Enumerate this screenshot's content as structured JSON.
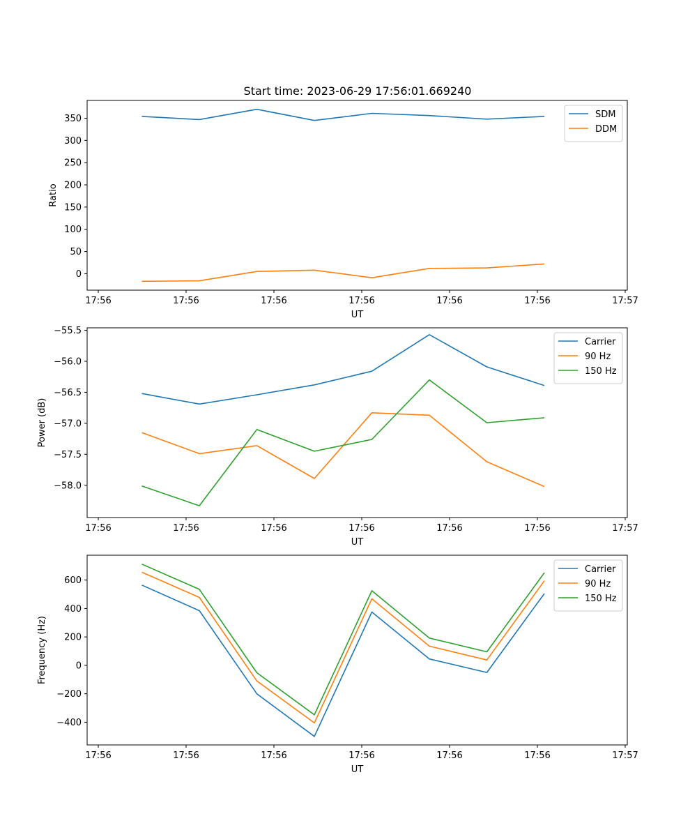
{
  "figure": {
    "title": "Start time: 2023-06-29 17:56:01.669240"
  },
  "chart_data": [
    {
      "type": "line",
      "title": "Start time: 2023-06-29 17:56:01.669240",
      "xlabel": "UT",
      "ylabel": "Ratio",
      "x_tick_labels": [
        "17:56",
        "17:56",
        "17:56",
        "17:56",
        "17:56",
        "17:56",
        "17:57"
      ],
      "y_ticks": [
        0,
        50,
        100,
        150,
        200,
        250,
        300,
        350
      ],
      "ylim": [
        -37,
        390
      ],
      "legend_position": "top-right",
      "grid": false,
      "series": [
        {
          "name": "SDM",
          "color": "#1f77b4",
          "values": [
            354,
            347,
            370,
            345,
            361,
            356,
            348,
            354
          ]
        },
        {
          "name": "DDM",
          "color": "#ff7f0e",
          "values": [
            -17,
            -16,
            5,
            8,
            -9,
            12,
            13,
            22
          ]
        }
      ]
    },
    {
      "type": "line",
      "title": "",
      "xlabel": "UT",
      "ylabel": "Power (dB)",
      "x_tick_labels": [
        "17:56",
        "17:56",
        "17:56",
        "17:56",
        "17:56",
        "17:56",
        "17:57"
      ],
      "y_ticks": [
        -58.0,
        -57.5,
        -57.0,
        -56.5,
        -56.0,
        -55.5
      ],
      "y_tick_labels": [
        "−58.0",
        "−57.5",
        "−57.0",
        "−56.5",
        "−56.0",
        "−55.5"
      ],
      "ylim": [
        -58.52,
        -55.46
      ],
      "legend_position": "top-right",
      "grid": false,
      "series": [
        {
          "name": "Carrier",
          "color": "#1f77b4",
          "values": [
            -56.52,
            -56.69,
            -56.54,
            -56.38,
            -56.16,
            -55.57,
            -56.09,
            -56.39
          ]
        },
        {
          "name": "90 Hz",
          "color": "#ff7f0e",
          "values": [
            -57.15,
            -57.49,
            -57.36,
            -57.89,
            -56.83,
            -56.87,
            -57.62,
            -58.02
          ]
        },
        {
          "name": "150 Hz",
          "color": "#2ca02c",
          "values": [
            -58.01,
            -58.33,
            -57.1,
            -57.45,
            -57.26,
            -56.3,
            -56.99,
            -56.91
          ]
        }
      ]
    },
    {
      "type": "line",
      "title": "",
      "xlabel": "UT",
      "ylabel": "Frequency (Hz)",
      "x_tick_labels": [
        "17:56",
        "17:56",
        "17:56",
        "17:56",
        "17:56",
        "17:56",
        "17:57"
      ],
      "y_ticks": [
        -400,
        -200,
        0,
        200,
        400,
        600
      ],
      "y_tick_labels": [
        "−400",
        "−200",
        "0",
        "200",
        "400",
        "600"
      ],
      "ylim": [
        -560,
        775
      ],
      "legend_position": "top-right",
      "grid": false,
      "series": [
        {
          "name": "Carrier",
          "color": "#1f77b4",
          "values": [
            565,
            385,
            -200,
            -500,
            375,
            45,
            -50,
            505
          ]
        },
        {
          "name": "90 Hz",
          "color": "#ff7f0e",
          "values": [
            655,
            478,
            -110,
            -405,
            468,
            135,
            38,
            595
          ]
        },
        {
          "name": "150 Hz",
          "color": "#2ca02c",
          "values": [
            712,
            535,
            -52,
            -348,
            525,
            192,
            95,
            652
          ]
        }
      ]
    }
  ]
}
